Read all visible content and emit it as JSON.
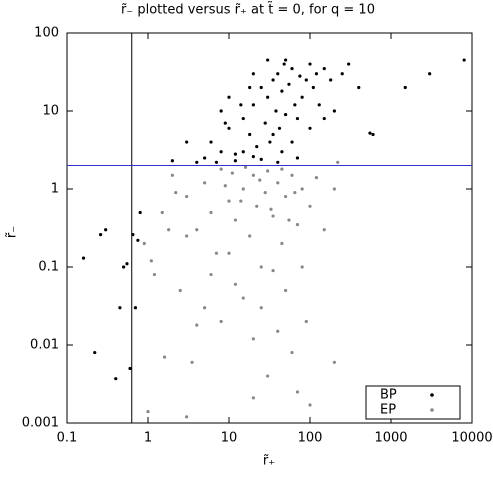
{
  "chart_data": {
    "type": "scatter",
    "title": "r̃₋ plotted versus r̃₊ at t̃ = 0, for q = 10",
    "x_label": "r̃₊",
    "y_label": "r̃₋",
    "log_x": true,
    "log_y": true,
    "xlim": [
      0.1,
      10000
    ],
    "ylim": [
      0.001,
      100
    ],
    "xticks": [
      0.1,
      1,
      10,
      100,
      1000,
      10000
    ],
    "yticks": [
      0.001,
      0.01,
      0.1,
      1,
      10,
      100
    ],
    "legend": "lower right",
    "vlines": [
      {
        "x": 0.63,
        "color": "#000000"
      }
    ],
    "hlines": [
      {
        "y": 2,
        "color": "#3333cc"
      }
    ],
    "series": [
      {
        "name": "BP",
        "color": "#000000",
        "x": [
          5,
          6,
          8,
          10,
          12,
          15,
          18,
          20,
          22,
          25,
          28,
          30,
          32,
          35,
          38,
          40,
          42,
          45,
          48,
          50,
          55,
          60,
          65,
          70,
          75,
          80,
          90,
          100,
          110,
          120,
          130,
          150,
          180,
          250,
          300,
          400,
          8,
          10,
          12,
          15,
          18,
          25,
          30,
          40,
          45,
          60,
          7,
          9,
          14,
          20,
          35,
          50,
          20,
          3,
          4,
          100,
          70,
          150,
          0.16,
          0.22,
          0.26,
          0.3,
          0.4,
          0.45,
          0.5,
          0.55,
          0.6,
          0.65,
          0.7,
          0.75,
          0.8,
          2,
          3000,
          8000,
          1500,
          600,
          550,
          200
        ],
        "values": [
          2.5,
          4,
          3,
          6,
          2.8,
          8,
          5,
          12,
          3.5,
          20,
          7,
          15,
          4,
          25,
          10,
          30,
          6,
          18,
          40,
          9,
          22,
          35,
          12,
          8,
          28,
          15,
          25,
          40,
          20,
          30,
          12,
          35,
          25,
          30,
          40,
          20,
          10,
          15,
          2.3,
          3,
          20,
          2.4,
          45,
          2.2,
          3,
          4,
          2.2,
          7,
          12,
          2.6,
          5,
          45,
          30,
          4,
          2.2,
          6,
          2.5,
          8,
          0.13,
          0.008,
          0.26,
          0.3,
          0.0037,
          0.03,
          0.1,
          0.11,
          0.005,
          0.26,
          0.03,
          0.22,
          0.5,
          2.3,
          30,
          45,
          20,
          5,
          5.2,
          10
        ]
      },
      {
        "name": "EP",
        "color": "#888888",
        "x": [
          2,
          3,
          4,
          5,
          6,
          7,
          8,
          10,
          12,
          15,
          18,
          20,
          22,
          25,
          28,
          30,
          35,
          40,
          45,
          50,
          60,
          70,
          80,
          100,
          120,
          150,
          200,
          1.5,
          1.2,
          2.5,
          3,
          5,
          6,
          8,
          10,
          12,
          15,
          20,
          25,
          35,
          40,
          50,
          60,
          80,
          90,
          3.5,
          1.6,
          4,
          9,
          11,
          14,
          16,
          24,
          33,
          45,
          55,
          65,
          1.8,
          2.2,
          1,
          3,
          20,
          30,
          70,
          100,
          200,
          0.9,
          1.1,
          220
        ],
        "values": [
          1.5,
          0.8,
          0.3,
          1.2,
          0.5,
          0.15,
          1.8,
          0.7,
          0.4,
          1.0,
          0.25,
          1.5,
          0.6,
          0.1,
          0.9,
          1.7,
          0.45,
          1.2,
          0.2,
          0.8,
          1.5,
          0.35,
          1.0,
          0.6,
          1.4,
          0.3,
          1.0,
          0.5,
          0.08,
          0.05,
          0.25,
          0.03,
          0.08,
          0.02,
          0.15,
          0.06,
          0.04,
          0.012,
          0.03,
          0.09,
          0.015,
          0.05,
          0.008,
          0.1,
          0.02,
          0.006,
          0.007,
          0.018,
          1.1,
          1.6,
          0.7,
          1.9,
          1.3,
          0.55,
          1.8,
          0.4,
          0.9,
          0.3,
          0.9,
          0.0014,
          0.0012,
          0.0021,
          0.004,
          0.0025,
          0.0017,
          0.006,
          0.2,
          0.12,
          2.2
        ]
      }
    ]
  }
}
